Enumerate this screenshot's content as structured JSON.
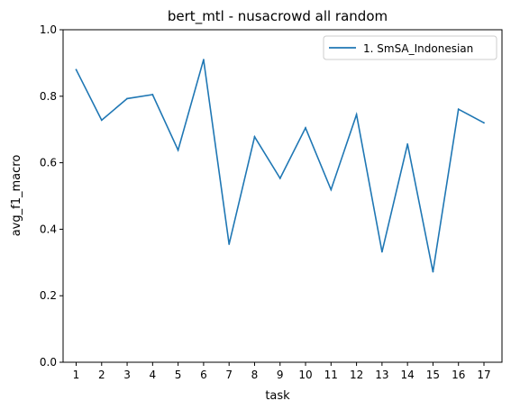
{
  "chart_data": {
    "type": "line",
    "title": "bert_mtl - nusacrowd all random",
    "xlabel": "task",
    "ylabel": "avg_f1_macro",
    "categories": [
      "1",
      "2",
      "3",
      "4",
      "5",
      "6",
      "7",
      "8",
      "9",
      "10",
      "11",
      "12",
      "13",
      "14",
      "15",
      "16",
      "17"
    ],
    "ylim": [
      0.0,
      1.0
    ],
    "yticks": [
      "0.0",
      "0.2",
      "0.4",
      "0.6",
      "0.8",
      "1.0"
    ],
    "legend_position": "top-right",
    "grid": false,
    "series": [
      {
        "name": "1. SmSA_Indonesian",
        "color": "#1f77b4",
        "values": [
          0.88,
          0.728,
          0.793,
          0.805,
          0.638,
          0.91,
          0.355,
          0.678,
          0.553,
          0.705,
          0.519,
          0.745,
          0.332,
          0.656,
          0.272,
          0.761,
          0.72
        ]
      }
    ]
  }
}
